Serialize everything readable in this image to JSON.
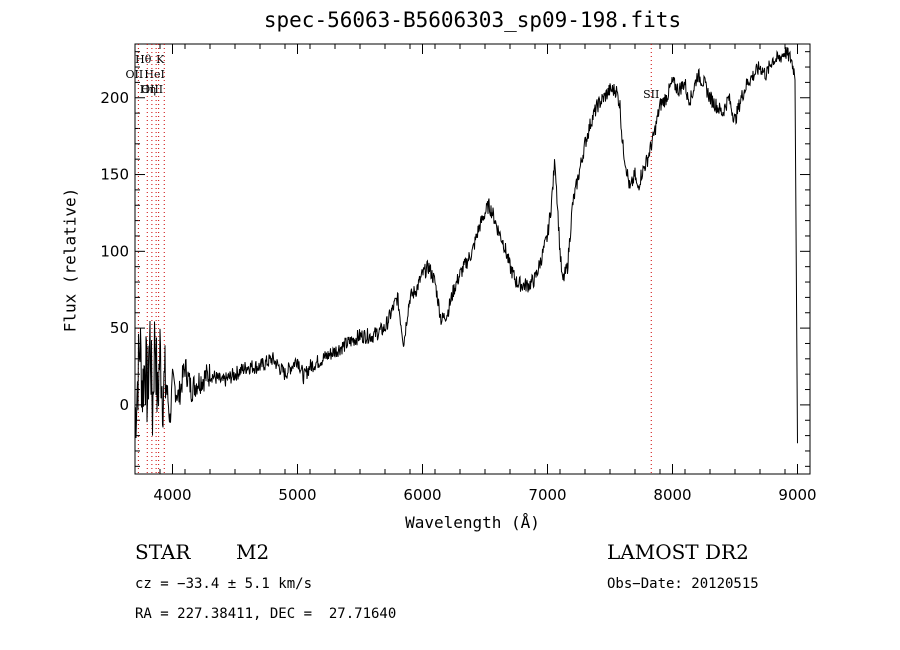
{
  "chart_data": {
    "type": "line",
    "title": "spec-56063-B5606303_sp09-198.fits",
    "xlabel": "Wavelength (Å)",
    "ylabel": "Flux (relative)",
    "xlim": [
      3700,
      9100
    ],
    "ylim": [
      -45,
      235
    ],
    "xticks": [
      4000,
      5000,
      6000,
      7000,
      8000,
      9000
    ],
    "yticks": [
      0,
      50,
      100,
      150,
      200
    ],
    "line_color": "#000000",
    "marker_color": "#cc0000",
    "series": [
      {
        "x": [
          3700,
          3740,
          3760,
          3780,
          3800,
          3820,
          3840,
          3860,
          3880,
          3900,
          3920,
          3950,
          3980,
          4000,
          4050,
          4100,
          4150,
          4200,
          4300,
          4400,
          4500,
          4600,
          4700,
          4800,
          4900,
          4950,
          5000,
          5050,
          5100,
          5200,
          5300,
          5400,
          5500,
          5600,
          5700,
          5800,
          5850,
          5880,
          5900,
          5950,
          6000,
          6050,
          6100,
          6150,
          6200,
          6250,
          6300,
          6400,
          6450,
          6500,
          6530,
          6560,
          6600,
          6650,
          6700,
          6750,
          6800,
          6850,
          6900,
          6950,
          7000,
          7030,
          7060,
          7080,
          7100,
          7120,
          7140,
          7160,
          7180,
          7200,
          7250,
          7300,
          7350,
          7400,
          7450,
          7500,
          7550,
          7580,
          7600,
          7620,
          7640,
          7660,
          7680,
          7700,
          7720,
          7750,
          7800,
          7850,
          7900,
          7950,
          8000,
          8050,
          8100,
          8120,
          8150,
          8200,
          8250,
          8300,
          8350,
          8400,
          8450,
          8500,
          8550,
          8600,
          8650,
          8700,
          8750,
          8800,
          8850,
          8900,
          8950,
          8980,
          9000
        ],
        "y": [
          -10,
          40,
          10,
          30,
          5,
          45,
          -5,
          50,
          0,
          35,
          10,
          15,
          -10,
          15,
          5,
          25,
          10,
          15,
          20,
          15,
          20,
          25,
          25,
          30,
          20,
          25,
          30,
          18,
          25,
          30,
          35,
          40,
          45,
          45,
          50,
          70,
          40,
          60,
          70,
          75,
          85,
          90,
          80,
          55,
          60,
          75,
          85,
          100,
          115,
          125,
          130,
          125,
          115,
          105,
          90,
          80,
          78,
          78,
          82,
          95,
          110,
          130,
          160,
          130,
          100,
          80,
          85,
          90,
          110,
          130,
          150,
          170,
          185,
          195,
          200,
          205,
          205,
          195,
          170,
          160,
          150,
          140,
          145,
          150,
          140,
          150,
          160,
          175,
          195,
          200,
          210,
          205,
          210,
          200,
          200,
          215,
          210,
          200,
          195,
          190,
          200,
          185,
          200,
          210,
          215,
          220,
          215,
          225,
          225,
          230,
          225,
          215,
          -25
        ]
      }
    ],
    "lines": [
      {
        "label": "Hθ",
        "x": 3798
      },
      {
        "label": "K",
        "x": 3934
      },
      {
        "label": "OII",
        "x": 3727
      },
      {
        "label": "HeI",
        "x": 3889
      },
      {
        "label": "OIII",
        "x": 3869
      },
      {
        "label": "Hη",
        "x": 3835
      },
      {
        "label": "SII",
        "x": 7830
      }
    ]
  },
  "info": {
    "star_label": "STAR",
    "subclass": "M2",
    "survey": "LAMOST DR2",
    "cz": "cz = −33.4 ± 5.1 km/s",
    "obs_date": "Obs−Date: 20120515",
    "coords": "RA = 227.38411, DEC =  27.71640"
  }
}
